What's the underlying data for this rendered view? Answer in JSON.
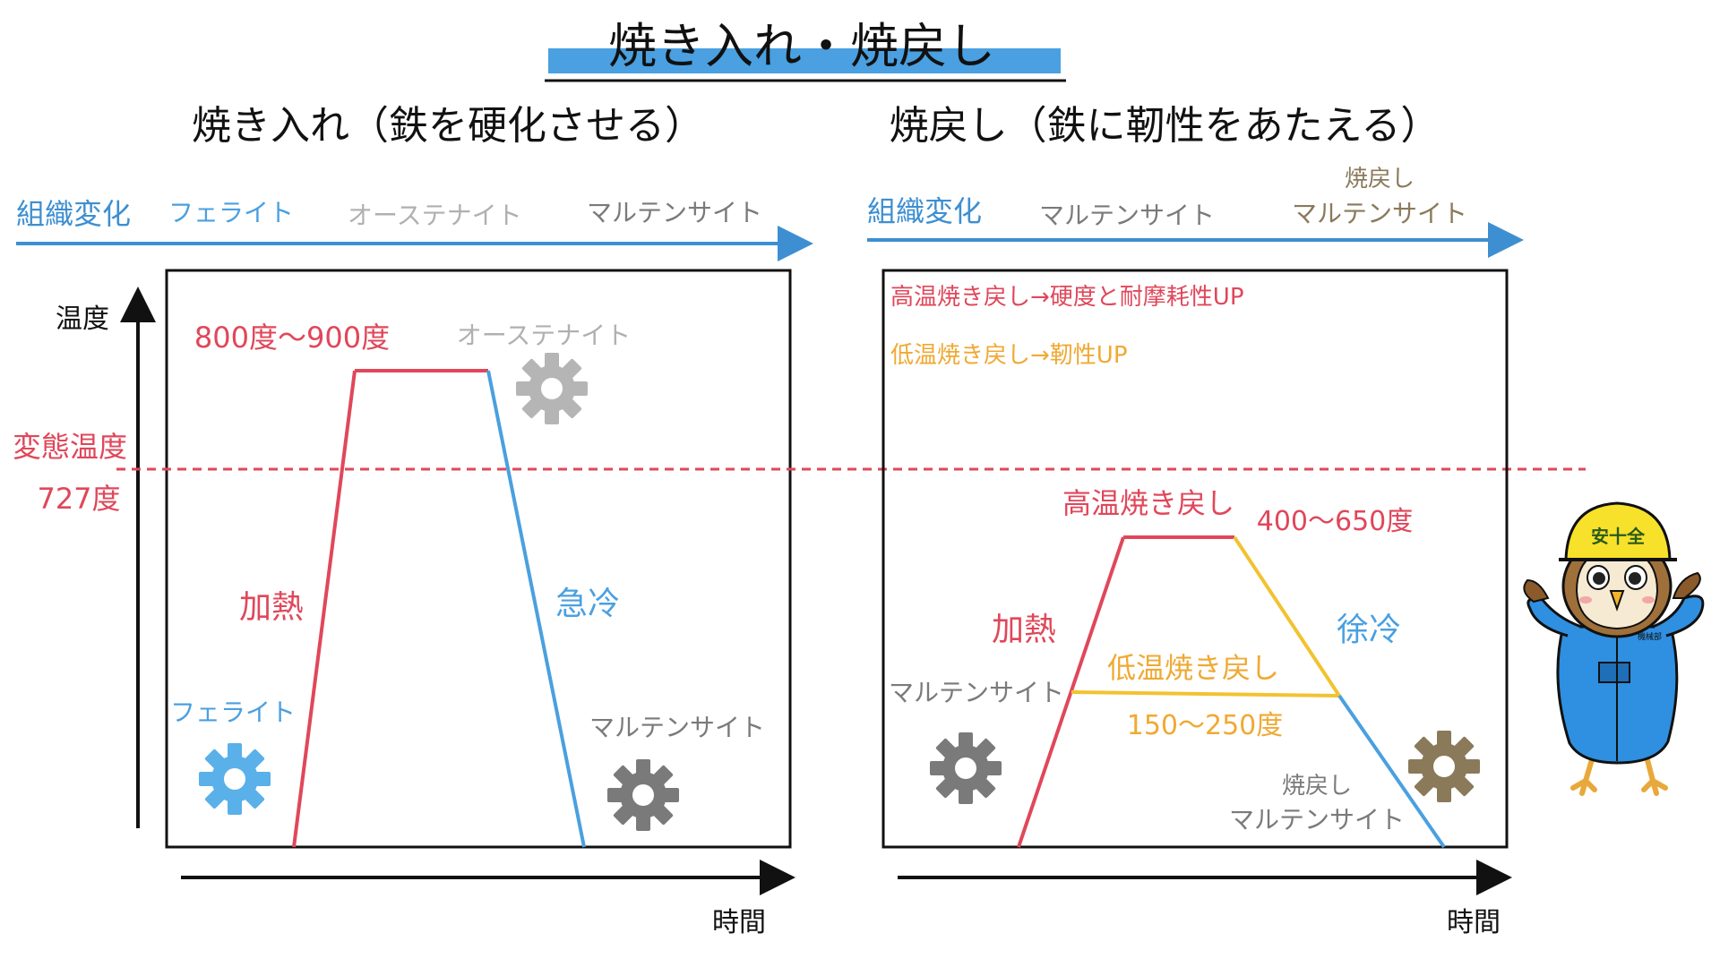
{
  "title": "焼き入れ・焼戻し",
  "colors": {
    "red": "#e0475a",
    "blue": "#4aa0e0",
    "blue_dark": "#3d8fd1",
    "gray": "#9a9a9a",
    "gray_dark": "#7a7a7a",
    "orange": "#f0a933",
    "yellow": "#f2c231",
    "brown": "#8a7a5a"
  },
  "left_panel": {
    "heading": "焼き入れ（鉄を硬化させる）",
    "structure_label": "組織変化",
    "stages": [
      "フェライト",
      "オーステナイト",
      "マルテンサイト"
    ],
    "y_axis_label": "温度",
    "x_axis_label": "時間",
    "peak_temp": "800度〜900度",
    "peak_phase": "オーステナイト",
    "heating_label": "加熱",
    "cooling_label": "急冷",
    "start_phase": "フェライト",
    "end_phase": "マルテンサイト",
    "icons": [
      "gear-icon",
      "gear-icon",
      "gear-icon"
    ]
  },
  "transformation": {
    "label": "変態温度",
    "value": "727度"
  },
  "right_panel": {
    "heading": "焼戻し（鉄に靭性をあたえる）",
    "structure_label": "組織変化",
    "stages": [
      "マルテンサイト",
      "焼戻し",
      "マルテンサイト"
    ],
    "note_high": "高温焼き戻し→硬度と耐摩耗性UP",
    "note_low": "低温焼き戻し→靭性UP",
    "high_label": "高温焼き戻し",
    "high_range": "400〜650度",
    "low_label": "低温焼き戻し",
    "low_range": "150〜250度",
    "heating_label": "加熱",
    "cooling_label": "徐冷",
    "start_phase": "マルテンサイト",
    "end_phase_line1": "焼戻し",
    "end_phase_line2": "マルテンサイト",
    "x_axis_label": "時間",
    "icons": [
      "gear-icon",
      "gear-icon"
    ]
  },
  "mascot": {
    "helmet_text": "安十全",
    "badge_text": "機械部"
  }
}
